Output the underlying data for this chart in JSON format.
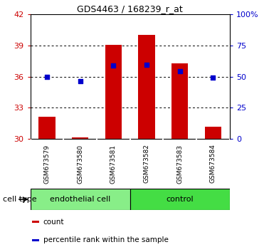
{
  "title": "GDS4463 / 168239_r_at",
  "samples": [
    "GSM673579",
    "GSM673580",
    "GSM673581",
    "GSM673582",
    "GSM673583",
    "GSM673584"
  ],
  "bar_values": [
    32.1,
    30.15,
    39.05,
    40.0,
    37.3,
    31.2
  ],
  "bar_base": 30.0,
  "percentile_values": [
    35.95,
    35.55,
    37.05,
    37.1,
    36.5,
    35.9
  ],
  "bar_color": "#cc0000",
  "percentile_color": "#0000cc",
  "ylim_left": [
    30,
    42
  ],
  "yticks_left": [
    30,
    33,
    36,
    39,
    42
  ],
  "ylim_right": [
    0,
    100
  ],
  "yticks_right": [
    0,
    25,
    50,
    75,
    100
  ],
  "yticklabels_right": [
    "0",
    "25",
    "50",
    "75",
    "100%"
  ],
  "grid_yticks": [
    33,
    36,
    39
  ],
  "cell_types": [
    {
      "label": "endothelial cell",
      "indices": [
        0,
        1,
        2
      ],
      "color": "#88ee88"
    },
    {
      "label": "control",
      "indices": [
        3,
        4,
        5
      ],
      "color": "#44dd44"
    }
  ],
  "cell_type_label": "cell type",
  "legend_items": [
    {
      "label": "count",
      "color": "#cc0000"
    },
    {
      "label": "percentile rank within the sample",
      "color": "#0000cc"
    }
  ],
  "background_color": "#ffffff",
  "sample_box_color": "#c8c8c8",
  "tick_label_color_left": "#cc0000",
  "tick_label_color_right": "#0000cc",
  "bar_width": 0.5,
  "title_fontsize": 9,
  "axis_fontsize": 8,
  "sample_fontsize": 6.5,
  "legend_fontsize": 7.5,
  "celltype_fontsize": 8
}
